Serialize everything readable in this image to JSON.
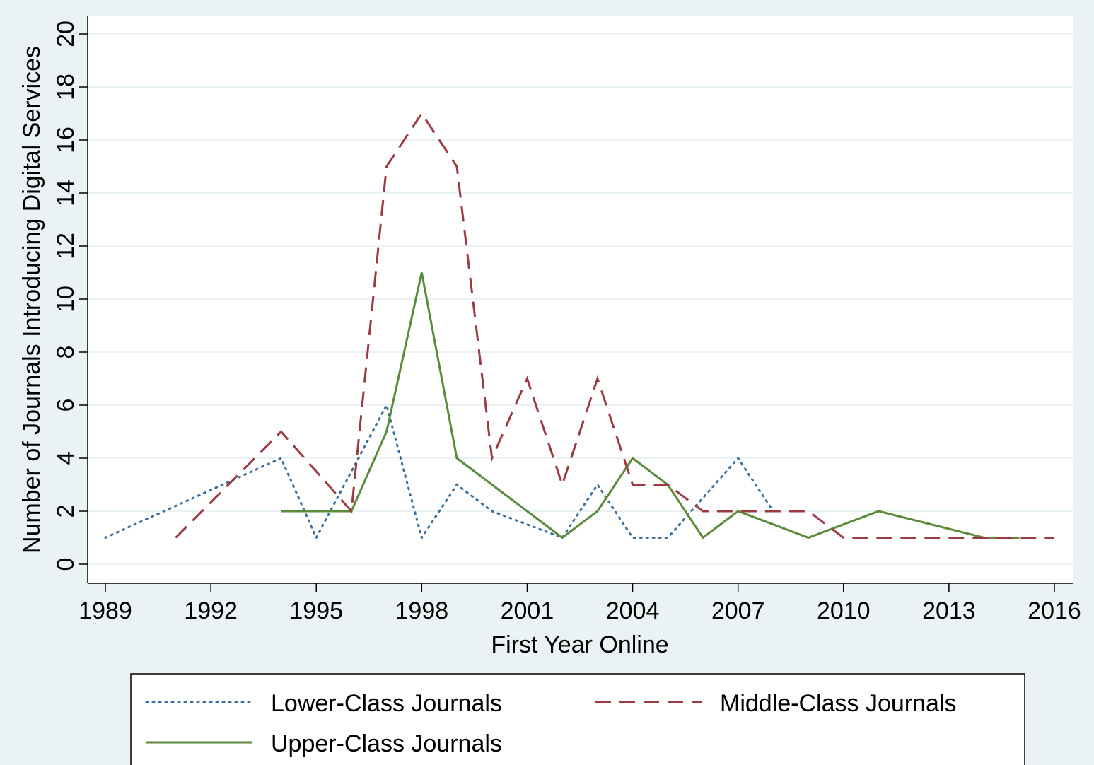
{
  "chart_data": {
    "type": "line",
    "xlabel": "First Year Online",
    "ylabel": "Number of Journals Introducing Digital Services",
    "xlim": [
      1989,
      2016
    ],
    "ylim": [
      0,
      20
    ],
    "x_ticks": [
      "1989",
      "1992",
      "1995",
      "1998",
      "2001",
      "2004",
      "2007",
      "2010",
      "2013",
      "2016"
    ],
    "y_ticks": [
      "0",
      "2",
      "4",
      "6",
      "8",
      "10",
      "12",
      "14",
      "16",
      "18",
      "20"
    ],
    "grid": true,
    "legend_position": "bottom",
    "series": [
      {
        "name": "Lower-Class Journals",
        "style": "dotted",
        "color": "#3a6f9c",
        "points": [
          [
            1989,
            1
          ],
          [
            1992,
            2.8
          ],
          [
            1993,
            3.4
          ],
          [
            1994,
            4
          ],
          [
            1995,
            1
          ],
          [
            1996,
            3.5
          ],
          [
            1997,
            6
          ],
          [
            1998,
            1
          ],
          [
            1999,
            3
          ],
          [
            2000,
            2
          ],
          [
            2002,
            1
          ],
          [
            2003,
            3
          ],
          [
            2004,
            1
          ],
          [
            2005,
            1
          ],
          [
            2007,
            4
          ],
          [
            2008,
            2
          ]
        ]
      },
      {
        "name": "Middle-Class Journals",
        "style": "dashed",
        "color": "#9c3a44",
        "points": [
          [
            1991,
            1
          ],
          [
            1994,
            5
          ],
          [
            1996,
            2
          ],
          [
            1997,
            15
          ],
          [
            1998,
            17
          ],
          [
            1999,
            15
          ],
          [
            2000,
            4
          ],
          [
            2001,
            7
          ],
          [
            2002,
            3
          ],
          [
            2003,
            7
          ],
          [
            2004,
            3
          ],
          [
            2005,
            3
          ],
          [
            2006,
            2
          ],
          [
            2007,
            2
          ],
          [
            2009,
            2
          ],
          [
            2010,
            1
          ],
          [
            2016,
            1
          ]
        ]
      },
      {
        "name": "Upper-Class Journals",
        "style": "solid",
        "color": "#5b8a3a",
        "points": [
          [
            1994,
            2
          ],
          [
            1996,
            2
          ],
          [
            1997,
            5
          ],
          [
            1998,
            11
          ],
          [
            1999,
            4
          ],
          [
            2002,
            1
          ],
          [
            2003,
            2
          ],
          [
            2004,
            4
          ],
          [
            2005,
            3
          ],
          [
            2006,
            1
          ],
          [
            2007,
            2
          ],
          [
            2009,
            1
          ],
          [
            2011,
            2
          ],
          [
            2014,
            1
          ],
          [
            2015,
            1
          ]
        ]
      }
    ]
  }
}
